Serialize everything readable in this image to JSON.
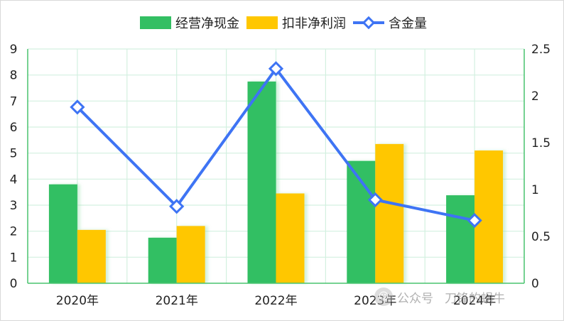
{
  "chart_data": {
    "type": "bar",
    "categories": [
      "2020年",
      "2021年",
      "2022年",
      "2023年",
      "2024年"
    ],
    "series": [
      {
        "name": "经营净现金",
        "kind": "bar",
        "axis": "left",
        "color": "#33bf63",
        "values": [
          3.8,
          1.75,
          7.75,
          4.7,
          3.38
        ]
      },
      {
        "name": "扣非净利润",
        "kind": "bar",
        "axis": "left",
        "color": "#ffc700",
        "values": [
          2.05,
          2.2,
          3.45,
          5.35,
          5.1
        ]
      },
      {
        "name": "含金量",
        "kind": "line",
        "axis": "right",
        "color": "#3e74f4",
        "values": [
          1.88,
          0.82,
          2.29,
          0.89,
          0.67
        ]
      }
    ],
    "y_left": {
      "min": 0,
      "max": 9,
      "ticks": [
        "0",
        "1",
        "2",
        "3",
        "4",
        "5",
        "6",
        "7",
        "8",
        "9"
      ]
    },
    "y_right": {
      "min": 0,
      "max": 2.5,
      "ticks": [
        "0",
        "0.5",
        "1",
        "1.5",
        "2",
        "2.5"
      ]
    },
    "grid": true,
    "legend_position": "top-center"
  },
  "watermark": {
    "icon": "wechat-public-account-icon",
    "platform": "公众号",
    "account": "刀锋的蜗牛"
  }
}
